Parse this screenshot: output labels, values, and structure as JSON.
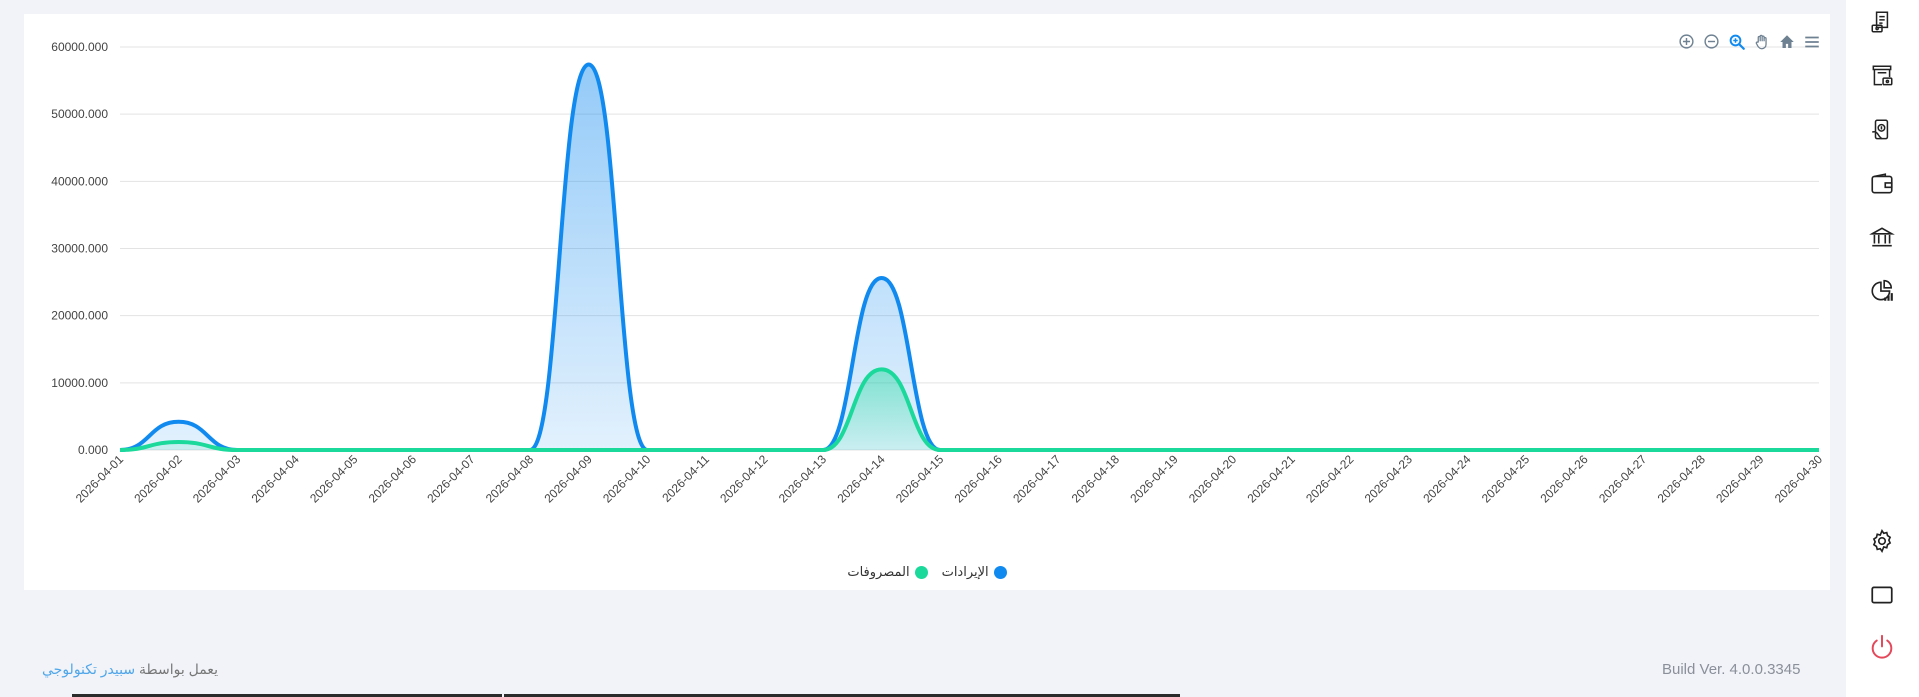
{
  "chart_data": {
    "type": "area",
    "x": [
      "2026-04-01",
      "2026-04-02",
      "2026-04-03",
      "2026-04-04",
      "2026-04-05",
      "2026-04-06",
      "2026-04-07",
      "2026-04-08",
      "2026-04-09",
      "2026-04-10",
      "2026-04-11",
      "2026-04-12",
      "2026-04-13",
      "2026-04-14",
      "2026-04-15",
      "2026-04-16",
      "2026-04-17",
      "2026-04-18",
      "2026-04-19",
      "2026-04-20",
      "2026-04-21",
      "2026-04-22",
      "2026-04-23",
      "2026-04-24",
      "2026-04-25",
      "2026-04-26",
      "2026-04-27",
      "2026-04-28",
      "2026-04-29",
      "2026-04-30"
    ],
    "series": [
      {
        "name": "الإيرادات",
        "color": "#118af0",
        "values": [
          0,
          4200,
          0,
          0,
          0,
          0,
          0,
          0,
          57400,
          0,
          0,
          0,
          0,
          25600,
          0,
          0,
          0,
          0,
          0,
          0,
          0,
          0,
          0,
          0,
          0,
          0,
          0,
          0,
          0,
          0
        ]
      },
      {
        "name": "المصروفات",
        "color": "#1bd99a",
        "values": [
          0,
          1200,
          0,
          0,
          0,
          0,
          0,
          0,
          0,
          0,
          0,
          0,
          0,
          12000,
          0,
          0,
          0,
          0,
          0,
          0,
          0,
          0,
          0,
          0,
          0,
          0,
          0,
          0,
          0,
          0
        ]
      }
    ],
    "y_ticks": [
      "0.000",
      "10000.000",
      "20000.000",
      "30000.000",
      "40000.000",
      "50000.000",
      "60000.000"
    ],
    "ylim": [
      0,
      60000
    ],
    "grid": true,
    "legend_position": "bottom-center",
    "title": "",
    "xlabel": "",
    "ylabel": ""
  },
  "toolbar": {
    "icons": [
      "zoom-in-icon",
      "zoom-out-icon",
      "selection-zoom-icon",
      "pan-icon",
      "reset-home-icon",
      "menu-icon"
    ],
    "active_color": "#118af0",
    "inactive_color": "#6e8192"
  },
  "footer": {
    "powered_prefix": "يعمل بواسطة",
    "powered_brand": "سبيدر تكنولوجي",
    "build": "Build Ver. 4.0.0.3345"
  },
  "sidebar": {
    "icons": [
      "invoice-icon",
      "store-icon",
      "payment-icon",
      "wallet-icon",
      "bank-icon",
      "reports-chart-icon",
      "settings-icon",
      "fullscreen-icon",
      "power-icon"
    ],
    "power_color": "#e5485a"
  }
}
